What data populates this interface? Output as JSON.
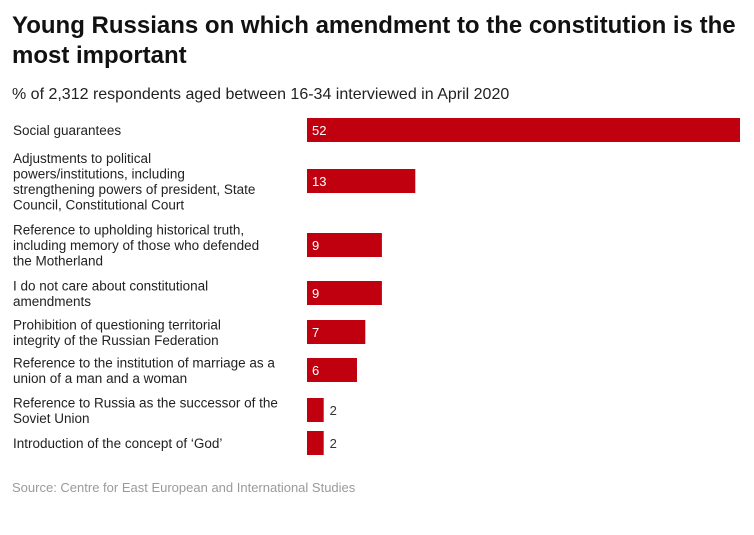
{
  "header": {
    "title": "Young Russians on which amendment to the constitution is the most important",
    "subtitle": "% of 2,312 respondents aged between 16-34 interviewed in April 2020"
  },
  "footer": {
    "source": "Source: Centre for East European and International Studies"
  },
  "colors": {
    "bar": "#c0000f"
  },
  "chart_data": {
    "type": "bar",
    "orientation": "horizontal",
    "categories": [
      [
        "Social guarantees"
      ],
      [
        "Adjustments to political",
        "powers/institutions, including",
        "strengthening powers of president, State",
        "Council, Constitutional Court"
      ],
      [
        "Reference to upholding historical truth,",
        "including memory of those who defended",
        "the Motherland"
      ],
      [
        "I do not care about constitutional",
        "amendments"
      ],
      [
        "Prohibition of questioning territorial",
        "integrity of the Russian Federation"
      ],
      [
        "Reference to the institution of marriage as a",
        "union of a man and a woman"
      ],
      [
        "Reference to Russia as the successor of the",
        "Soviet Union"
      ],
      [
        "Introduction of the concept of ‘God’"
      ]
    ],
    "values": [
      52,
      13,
      9,
      9,
      7,
      6,
      2,
      2
    ],
    "xlim": [
      0,
      52
    ],
    "grid": false,
    "legend": "none"
  }
}
